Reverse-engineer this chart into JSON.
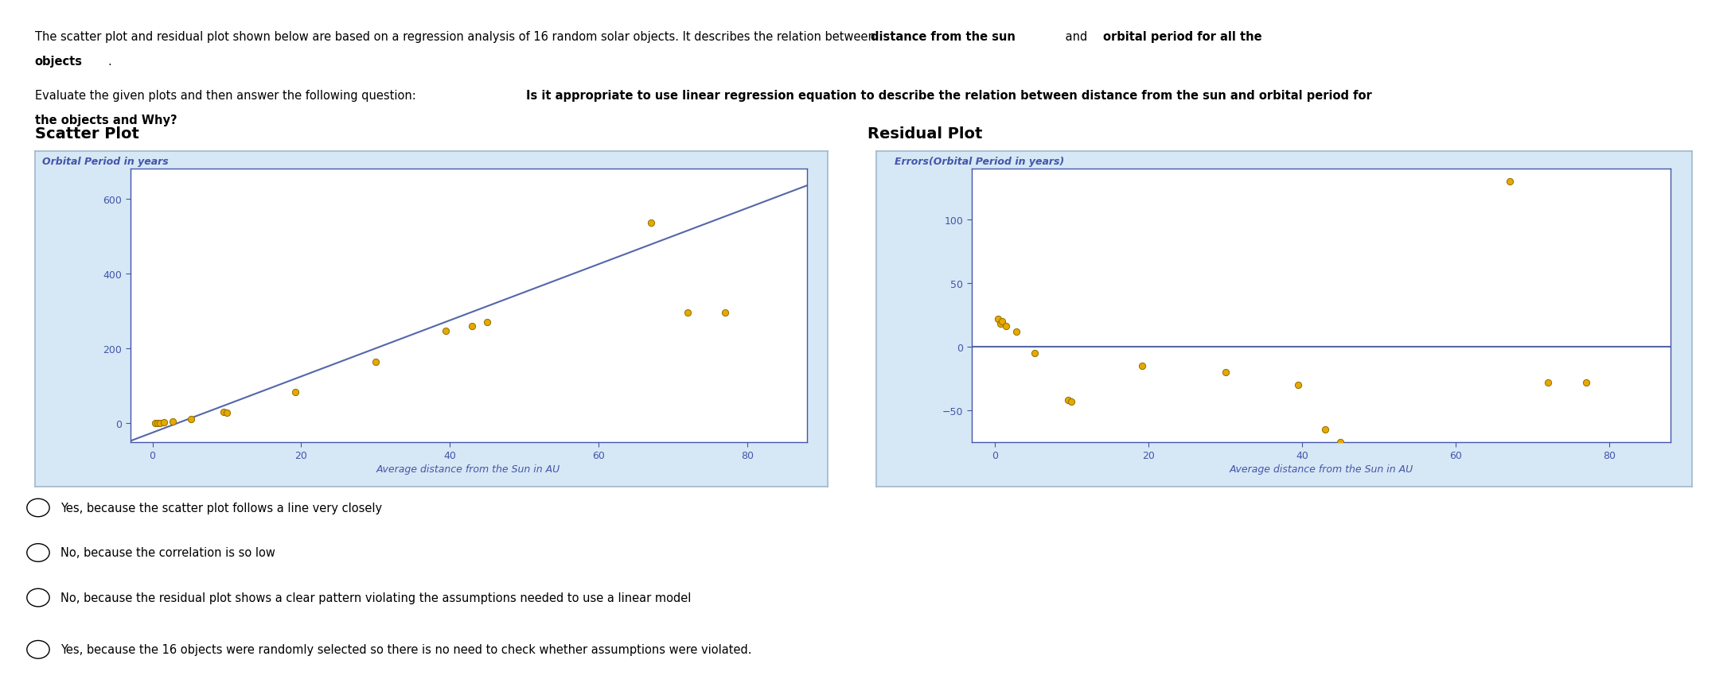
{
  "scatter_title": "Scatter Plot",
  "residual_title": "Residual Plot",
  "scatter_ylabel": "Orbital Period in years",
  "scatter_xlabel": "Average distance from the Sun in AU",
  "residual_ylabel": "Errors(Orbital Period in years)",
  "residual_xlabel": "Average distance from the Sun in AU",
  "scatter_x": [
    0.39,
    0.72,
    1.0,
    1.52,
    2.77,
    5.2,
    9.58,
    10.0,
    19.2,
    30.07,
    39.48,
    43.0,
    45.0,
    67.0,
    72.0,
    77.0
  ],
  "scatter_y": [
    0.24,
    0.62,
    1.0,
    1.88,
    4.6,
    11.86,
    29.46,
    29.0,
    84.01,
    164.8,
    247.92,
    260.0,
    270.0,
    535.0,
    295.0,
    295.0
  ],
  "regression_slope": 7.5,
  "regression_intercept": -25,
  "residual_x": [
    0.39,
    0.72,
    1.0,
    1.52,
    2.77,
    5.2,
    9.58,
    10.0,
    19.2,
    30.07,
    39.48,
    43.0,
    45.0,
    67.0,
    72.0,
    77.0
  ],
  "residual_y": [
    22,
    18,
    20,
    16,
    12,
    -5,
    -42,
    -43,
    -15,
    -20,
    -30,
    -65,
    -75,
    130,
    -28,
    -28
  ],
  "scatter_dot_color": "#E8A800",
  "scatter_dot_edge": "#8B7000",
  "line_color": "#5566AA",
  "bg_color": "#D6E8F5",
  "panel_bg": "#FFFFFF",
  "axis_label_color": "#4455AA",
  "scatter_xlim": [
    -3,
    88
  ],
  "scatter_ylim": [
    -50,
    680
  ],
  "scatter_xticks": [
    0,
    20,
    40,
    60,
    80
  ],
  "scatter_yticks": [
    0,
    200,
    400,
    600
  ],
  "residual_xlim": [
    -3,
    88
  ],
  "residual_ylim": [
    -75,
    140
  ],
  "residual_xticks": [
    0,
    20,
    40,
    60,
    80
  ],
  "residual_yticks": [
    -50,
    0,
    50,
    100
  ],
  "options": [
    "Yes, because the scatter plot follows a line very closely",
    "No, because the correlation is so low",
    "No, because the residual plot shows a clear pattern violating the assumptions needed to use a linear model",
    "Yes, because the 16 objects were randomly selected so there is no need to check whether assumptions were violated."
  ]
}
